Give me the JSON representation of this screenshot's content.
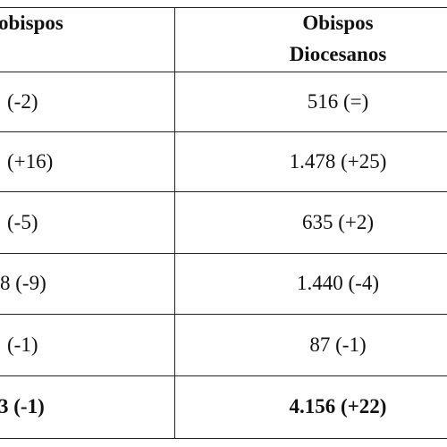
{
  "table": {
    "header": [
      "obispos",
      "Obispos Diocesanos"
    ],
    "rows": [
      [
        "(-2)",
        "516 (=)"
      ],
      [
        "(+16)",
        "1.478 (+25)"
      ],
      [
        "(-5)",
        "635 (+2)"
      ],
      [
        "8 (-9)",
        "1.440 (-4)"
      ],
      [
        "(-1)",
        "87 (-1)"
      ],
      [
        "3 (-1)",
        "4.156 (+22)"
      ]
    ]
  }
}
